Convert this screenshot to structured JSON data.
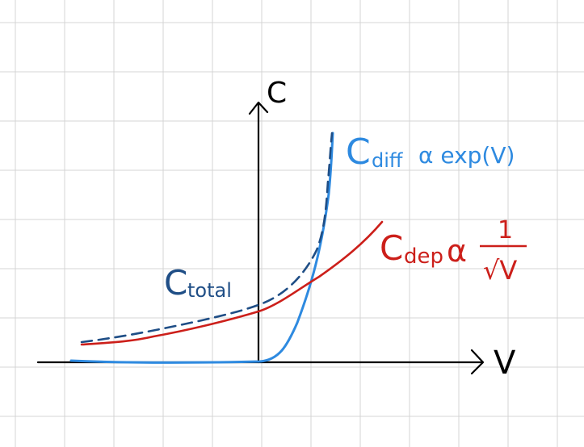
{
  "axes": {
    "x_label": "V",
    "y_label": "C"
  },
  "curves": {
    "diff": {
      "label_main": "C",
      "label_sub": "diff",
      "relation": "α exp(V)",
      "color": "#2e8ae0"
    },
    "dep": {
      "label_main": "C",
      "label_sub": "dep",
      "relation": "α",
      "numerator": "1",
      "denominator": "√V",
      "color": "#cc1f1a"
    },
    "total": {
      "label_main": "C",
      "label_sub": "total",
      "color": "#1f4e86"
    }
  },
  "grid_color": "#d4d4d4",
  "axis_color": "#000000"
}
